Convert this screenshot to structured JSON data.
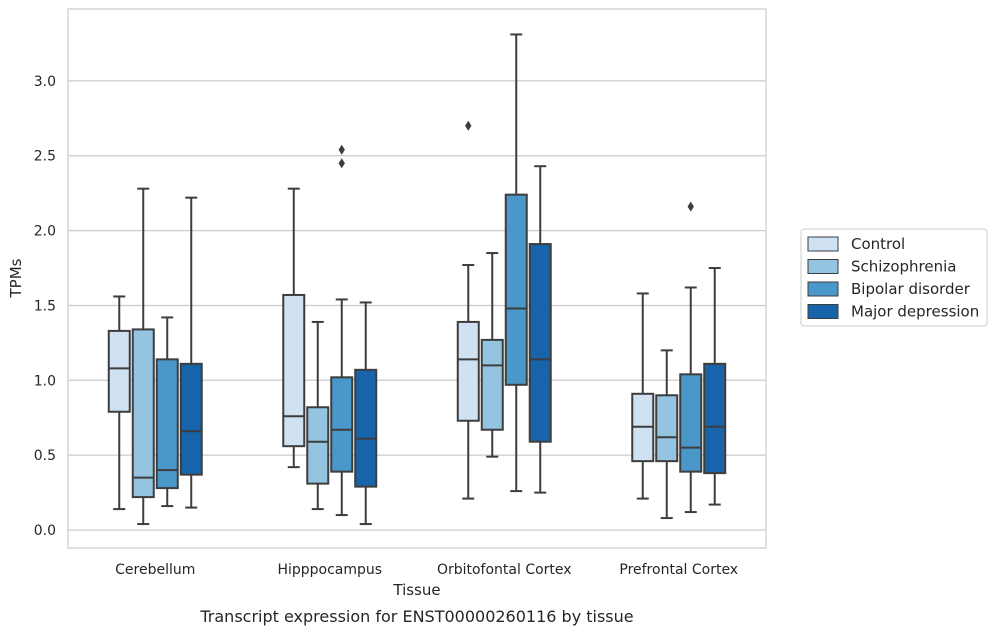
{
  "chart_data": {
    "type": "box",
    "caption": "Transcript expression for ENST00000260116 by tissue",
    "xlabel": "Tissue",
    "ylabel": "TPMs",
    "ylim": [
      -0.12,
      3.48
    ],
    "yticks": [
      0.0,
      0.5,
      1.0,
      1.5,
      2.0,
      2.5,
      3.0
    ],
    "ytick_labels": [
      "0.0",
      "0.5",
      "1.0",
      "1.5",
      "2.0",
      "2.5",
      "3.0"
    ],
    "grid": "horizontal",
    "legend_position": "right",
    "categories": [
      "Cerebellum",
      "Hipppocampus",
      "Orbitofontal Cortex",
      "Prefrontal Cortex"
    ],
    "series": [
      {
        "name": "Control",
        "color": "#d0e1f2",
        "boxes": [
          {
            "whislo": 0.14,
            "q1": 0.79,
            "med": 1.08,
            "q3": 1.33,
            "whishi": 1.56,
            "fliers": []
          },
          {
            "whislo": 0.42,
            "q1": 0.56,
            "med": 0.76,
            "q3": 1.57,
            "whishi": 2.28,
            "fliers": []
          },
          {
            "whislo": 0.21,
            "q1": 0.73,
            "med": 1.14,
            "q3": 1.39,
            "whishi": 1.77,
            "fliers": [
              2.7
            ]
          },
          {
            "whislo": 0.21,
            "q1": 0.46,
            "med": 0.69,
            "q3": 0.91,
            "whishi": 1.58,
            "fliers": []
          }
        ]
      },
      {
        "name": "Schizophrenia",
        "color": "#94c4df",
        "boxes": [
          {
            "whislo": 0.04,
            "q1": 0.22,
            "med": 0.35,
            "q3": 1.34,
            "whishi": 2.28,
            "fliers": []
          },
          {
            "whislo": 0.14,
            "q1": 0.31,
            "med": 0.59,
            "q3": 0.82,
            "whishi": 1.39,
            "fliers": []
          },
          {
            "whislo": 0.49,
            "q1": 0.67,
            "med": 1.1,
            "q3": 1.27,
            "whishi": 1.85,
            "fliers": []
          },
          {
            "whislo": 0.08,
            "q1": 0.46,
            "med": 0.62,
            "q3": 0.9,
            "whishi": 1.2,
            "fliers": []
          }
        ]
      },
      {
        "name": "Bipolar disorder",
        "color": "#4a98c9",
        "boxes": [
          {
            "whislo": 0.16,
            "q1": 0.28,
            "med": 0.4,
            "q3": 1.14,
            "whishi": 1.42,
            "fliers": []
          },
          {
            "whislo": 0.1,
            "q1": 0.39,
            "med": 0.67,
            "q3": 1.02,
            "whishi": 1.54,
            "fliers": [
              2.45,
              2.54
            ]
          },
          {
            "whislo": 0.26,
            "q1": 0.97,
            "med": 1.48,
            "q3": 2.24,
            "whishi": 3.31,
            "fliers": []
          },
          {
            "whislo": 0.12,
            "q1": 0.39,
            "med": 0.55,
            "q3": 1.04,
            "whishi": 1.62,
            "fliers": [
              2.16
            ]
          }
        ]
      },
      {
        "name": "Major depression",
        "color": "#1764ab",
        "boxes": [
          {
            "whislo": 0.15,
            "q1": 0.37,
            "med": 0.66,
            "q3": 1.11,
            "whishi": 2.22,
            "fliers": []
          },
          {
            "whislo": 0.04,
            "q1": 0.29,
            "med": 0.61,
            "q3": 1.07,
            "whishi": 1.52,
            "fliers": []
          },
          {
            "whislo": 0.25,
            "q1": 0.59,
            "med": 1.14,
            "q3": 1.91,
            "whishi": 2.43,
            "fliers": []
          },
          {
            "whislo": 0.17,
            "q1": 0.38,
            "med": 0.69,
            "q3": 1.11,
            "whishi": 1.75,
            "fliers": []
          }
        ]
      }
    ]
  }
}
